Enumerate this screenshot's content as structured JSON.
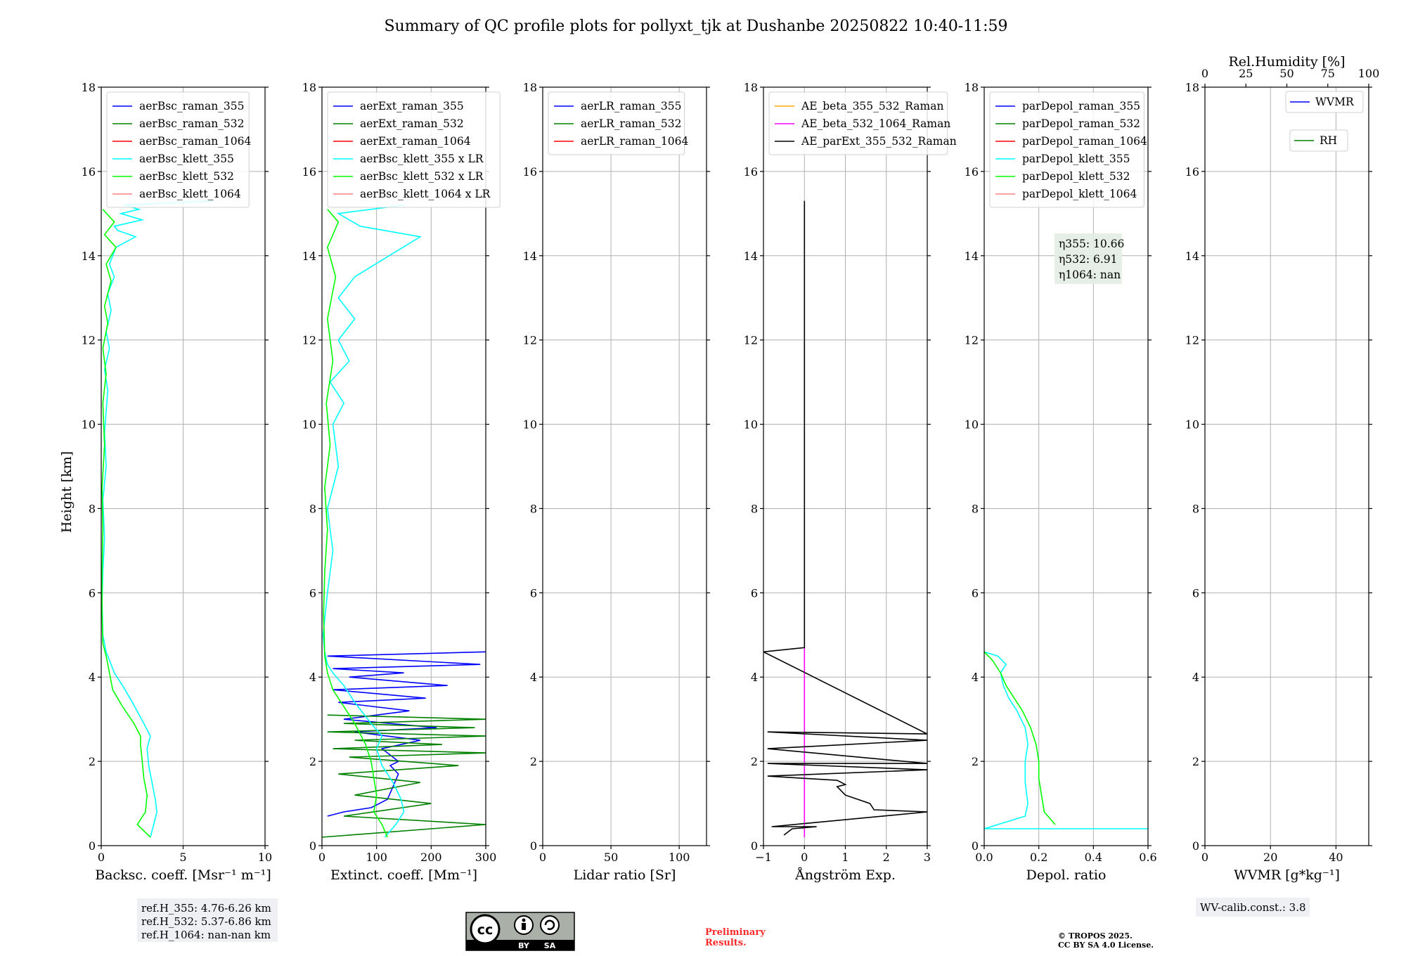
{
  "figure": {
    "title": "Summary of QC profile plots for pollyxt_tjk at Dushanbe 20250822 10:40-11:59",
    "ylabel": "Height [km]",
    "ref_heights": [
      "ref.H_355: 4.76-6.26 km",
      "ref.H_532: 5.37-6.86 km",
      "ref.H_1064: nan-nan km"
    ],
    "license_badge": {
      "by": "BY",
      "sa": "SA"
    },
    "preliminary": [
      "Preliminary",
      "Results."
    ],
    "copyright": [
      "© TROPOS 2025.",
      "CC BY SA 4.0 License."
    ],
    "wv_calib": "WV-calib.const.: 3.8",
    "eta_labels": [
      "η355: 10.66",
      "η532: 6.91",
      "η1064: nan"
    ]
  },
  "colors": {
    "raman_355": "#0000ff",
    "raman_532": "#008000",
    "raman_1064": "#ff0000",
    "klett_355": "#00ffff",
    "klett_532": "#00ff00",
    "klett_1064": "#ff8080",
    "ae_beta_355_532": "#ffa500",
    "ae_beta_532_1064": "#ff00ff",
    "ae_parext": "#000000",
    "wvmr": "#0000ff",
    "rh": "#008000"
  },
  "chart_data": [
    {
      "type": "line",
      "xlabel": "Backsc. coeff. [Msr⁻¹ m⁻¹]",
      "ylabel": "Height [km]",
      "xlim": [
        0,
        10
      ],
      "ylim": [
        0,
        18
      ],
      "xticks": [
        "0",
        "5",
        "10"
      ],
      "yticks": [
        "0",
        "2",
        "4",
        "6",
        "8",
        "10",
        "12",
        "14",
        "16",
        "18"
      ],
      "legend": "upper-left",
      "series": [
        {
          "name": "aerBsc_raman_355",
          "color": "#0000ff",
          "x": [],
          "y": []
        },
        {
          "name": "aerBsc_raman_532",
          "color": "#008000",
          "x": [],
          "y": []
        },
        {
          "name": "aerBsc_raman_1064",
          "color": "#ff0000",
          "x": [],
          "y": []
        },
        {
          "name": "aerBsc_klett_355",
          "color": "#00ffff",
          "x": [
            3.0,
            3.2,
            3.4,
            3.3,
            3.1,
            2.9,
            2.8,
            3.0,
            2.6,
            1.9,
            1.3,
            0.8,
            0.6,
            0.3,
            0.1,
            0.05,
            0.1,
            0.2,
            0.1,
            0.3,
            0.2,
            0.3,
            0.4,
            0.2,
            0.5,
            0.3,
            0.6,
            0.4,
            0.8,
            0.5,
            0.7,
            0.9,
            2.1,
            1.0,
            0.8,
            2.5,
            1.2,
            2.3,
            1.4,
            6.8
          ],
          "y": [
            0.2,
            0.5,
            0.8,
            1.1,
            1.5,
            1.9,
            2.3,
            2.6,
            2.9,
            3.4,
            3.8,
            4.1,
            4.3,
            4.6,
            5.0,
            5.8,
            6.5,
            7.3,
            8.2,
            9.0,
            9.8,
            10.3,
            10.8,
            11.3,
            11.8,
            12.2,
            12.7,
            13.1,
            13.5,
            13.8,
            14.0,
            14.2,
            14.45,
            14.6,
            14.7,
            14.85,
            15.0,
            15.1,
            15.2,
            15.3
          ]
        },
        {
          "name": "aerBsc_klett_532",
          "color": "#00ff00",
          "x": [
            3.0,
            2.2,
            2.7,
            2.8,
            2.6,
            2.5,
            2.4,
            2.4,
            2.0,
            1.3,
            0.7,
            0.5,
            0.3,
            0.1,
            0.05,
            0.05,
            0.1,
            0.05,
            0.2,
            0.1,
            0.3,
            0.1,
            0.4,
            0.2,
            0.6,
            0.3,
            0.9,
            0.2,
            0.8,
            0.1
          ],
          "y": [
            0.2,
            0.5,
            0.8,
            1.2,
            1.6,
            2.0,
            2.4,
            2.6,
            2.9,
            3.3,
            3.7,
            4.1,
            4.5,
            4.8,
            5.5,
            6.5,
            7.5,
            8.5,
            9.5,
            10.5,
            11.2,
            11.8,
            12.4,
            12.8,
            13.4,
            13.8,
            14.2,
            14.5,
            14.8,
            15.1
          ]
        },
        {
          "name": "aerBsc_klett_1064",
          "color": "#ff8080",
          "x": [],
          "y": []
        }
      ],
      "annotation": "ref_heights"
    },
    {
      "type": "line",
      "xlabel": "Extinct. coeff. [Mm⁻¹]",
      "xlim": [
        0,
        300
      ],
      "ylim": [
        0,
        18
      ],
      "xticks": [
        "0",
        "100",
        "200",
        "300"
      ],
      "yticks": [
        "0",
        "2",
        "4",
        "6",
        "8",
        "10",
        "12",
        "14",
        "16",
        "18"
      ],
      "legend": "upper-left",
      "series": [
        {
          "name": "aerExt_raman_355",
          "color": "#0000ff",
          "x": [
            10,
            40,
            90,
            120,
            130,
            140,
            125,
            140,
            110,
            180,
            60,
            210,
            40,
            160,
            30,
            190,
            20,
            230,
            50,
            150,
            20,
            290,
            10,
            300
          ],
          "y": [
            0.7,
            0.8,
            0.9,
            1.1,
            1.4,
            1.7,
            1.9,
            2.0,
            2.3,
            2.5,
            2.7,
            2.8,
            3.0,
            3.2,
            3.4,
            3.5,
            3.7,
            3.8,
            4.0,
            4.1,
            4.2,
            4.3,
            4.5,
            4.6
          ]
        },
        {
          "name": "aerExt_raman_532",
          "color": "#008000",
          "x": [
            0,
            300,
            40,
            200,
            60,
            180,
            30,
            250,
            50,
            300,
            20,
            220,
            60,
            300,
            10,
            280,
            40,
            300,
            10
          ],
          "y": [
            0.2,
            0.5,
            0.7,
            1.0,
            1.2,
            1.5,
            1.7,
            1.9,
            2.1,
            2.2,
            2.3,
            2.4,
            2.5,
            2.6,
            2.7,
            2.8,
            2.9,
            3.0,
            3.1
          ]
        },
        {
          "name": "aerExt_raman_1064",
          "color": "#ff0000",
          "x": [],
          "y": []
        },
        {
          "name": "aerBsc_klett_355 x LR",
          "color": "#00ffff",
          "x": [
            115,
            135,
            150,
            145,
            130,
            110,
            100,
            110,
            90,
            60,
            40,
            20,
            10,
            5,
            2,
            10,
            20,
            10,
            30,
            20,
            40,
            15,
            50,
            30,
            60,
            30,
            60,
            180,
            70,
            30,
            150
          ],
          "y": [
            0.2,
            0.5,
            0.8,
            1.1,
            1.5,
            1.9,
            2.3,
            2.6,
            2.9,
            3.4,
            3.8,
            4.1,
            4.3,
            4.6,
            5.0,
            6.0,
            7.0,
            8.0,
            9.0,
            10.0,
            10.5,
            11.0,
            11.5,
            12.0,
            12.5,
            13.0,
            13.5,
            14.45,
            14.7,
            15.0,
            15.2
          ]
        },
        {
          "name": "aerBsc_klett_532 x LR",
          "color": "#00ff00",
          "x": [
            120,
            110,
            95,
            100,
            95,
            90,
            80,
            60,
            40,
            20,
            10,
            5,
            3,
            5,
            10,
            5,
            15,
            8,
            20,
            10,
            25,
            10,
            30,
            10
          ],
          "y": [
            0.2,
            0.5,
            0.8,
            1.2,
            1.6,
            2.0,
            2.4,
            2.9,
            3.3,
            3.7,
            4.1,
            4.5,
            5.5,
            6.5,
            7.5,
            8.5,
            9.5,
            10.5,
            11.5,
            12.5,
            13.5,
            14.2,
            14.8,
            15.1
          ]
        },
        {
          "name": "aerBsc_klett_1064 x LR",
          "color": "#ff8080",
          "x": [],
          "y": []
        }
      ]
    },
    {
      "type": "line",
      "xlabel": "Lidar ratio [Sr]",
      "xlim": [
        0,
        120
      ],
      "ylim": [
        0,
        18
      ],
      "xticks": [
        "0",
        "50",
        "100"
      ],
      "yticks": [
        "0",
        "2",
        "4",
        "6",
        "8",
        "10",
        "12",
        "14",
        "16",
        "18"
      ],
      "legend": "upper-left",
      "series": [
        {
          "name": "aerLR_raman_355",
          "color": "#0000ff",
          "x": [],
          "y": []
        },
        {
          "name": "aerLR_raman_532",
          "color": "#008000",
          "x": [],
          "y": []
        },
        {
          "name": "aerLR_raman_1064",
          "color": "#ff0000",
          "x": [],
          "y": []
        }
      ]
    },
    {
      "type": "line",
      "xlabel": "Ångström Exp.",
      "xlim": [
        -1,
        3
      ],
      "ylim": [
        0,
        18
      ],
      "xticks": [
        "−1",
        "0",
        "1",
        "2",
        "3"
      ],
      "yticks": [
        "0",
        "2",
        "4",
        "6",
        "8",
        "10",
        "12",
        "14",
        "16",
        "18"
      ],
      "legend": "upper-left",
      "series": [
        {
          "name": "AE_beta_355_532_Raman",
          "color": "#ffa500",
          "x": [],
          "y": []
        },
        {
          "name": "AE_beta_532_1064_Raman",
          "color": "#ff00ff",
          "x": [
            0,
            0
          ],
          "y": [
            0.2,
            4.7
          ]
        },
        {
          "name": "AE_parExt_355_532_Raman",
          "color": "#000000",
          "x": [
            -0.5,
            -0.3,
            0.3,
            -0.8,
            3.0,
            1.7,
            1.6,
            1.0,
            0.8,
            1.0,
            0.8,
            -0.9,
            3.0,
            -0.9,
            3.0,
            -0.9,
            3.0,
            -0.9,
            3.0,
            -1.0,
            0.0,
            0.0
          ],
          "y": [
            0.25,
            0.4,
            0.45,
            0.45,
            0.8,
            0.85,
            1.0,
            1.2,
            1.4,
            1.45,
            1.55,
            1.65,
            1.8,
            1.95,
            1.95,
            2.3,
            2.5,
            2.7,
            2.65,
            4.6,
            4.7,
            15.3
          ]
        }
      ]
    },
    {
      "type": "line",
      "xlabel": "Depol. ratio",
      "xlim": [
        0,
        0.6
      ],
      "ylim": [
        0,
        18
      ],
      "xticks": [
        "0.0",
        "0.2",
        "0.4",
        "0.6"
      ],
      "yticks": [
        "0",
        "2",
        "4",
        "6",
        "8",
        "10",
        "12",
        "14",
        "16",
        "18"
      ],
      "legend": "upper-left",
      "series": [
        {
          "name": "parDepol_raman_355",
          "color": "#0000ff",
          "x": [],
          "y": []
        },
        {
          "name": "parDepol_raman_532",
          "color": "#008000",
          "x": [],
          "y": []
        },
        {
          "name": "parDepol_raman_1064",
          "color": "#ff0000",
          "x": [],
          "y": []
        },
        {
          "name": "parDepol_klett_355",
          "color": "#00ffff",
          "x": [
            0.6,
            0.0,
            0.15,
            0.16,
            0.15,
            0.15,
            0.16,
            0.15,
            0.12,
            0.09,
            0.07,
            0.06,
            0.08,
            0.05,
            0.0
          ],
          "y": [
            0.4,
            0.4,
            0.7,
            1.0,
            1.5,
            2.0,
            2.4,
            2.8,
            3.2,
            3.5,
            3.8,
            4.1,
            4.3,
            4.5,
            4.6
          ]
        },
        {
          "name": "parDepol_klett_532",
          "color": "#00ff00",
          "x": [
            0.26,
            0.22,
            0.21,
            0.2,
            0.2,
            0.19,
            0.17,
            0.14,
            0.11,
            0.08,
            0.06,
            0.03,
            0.0
          ],
          "y": [
            0.5,
            0.8,
            1.2,
            1.6,
            2.0,
            2.4,
            2.8,
            3.2,
            3.5,
            3.8,
            4.1,
            4.4,
            4.6
          ]
        },
        {
          "name": "parDepol_klett_1064",
          "color": "#ff8080",
          "x": [],
          "y": []
        }
      ],
      "annotation": "eta_labels"
    },
    {
      "type": "line",
      "xlabel": "WVMR [g*kg⁻¹]",
      "x2label": "Rel.Humidity [%]",
      "xlim": [
        0,
        50
      ],
      "x2lim": [
        0,
        100
      ],
      "ylim": [
        0,
        18
      ],
      "xticks": [
        "0",
        "20",
        "40"
      ],
      "x2ticks": [
        "0",
        "25",
        "50",
        "75",
        "100"
      ],
      "yticks": [
        "0",
        "2",
        "4",
        "6",
        "8",
        "10",
        "12",
        "14",
        "16",
        "18"
      ],
      "legend": "upper-right",
      "series": [
        {
          "name": "WVMR",
          "color": "#0000ff",
          "x": [],
          "y": []
        },
        {
          "name": "RH",
          "color": "#008000",
          "x": [],
          "y": []
        }
      ],
      "annotation": "wv_calib"
    }
  ]
}
